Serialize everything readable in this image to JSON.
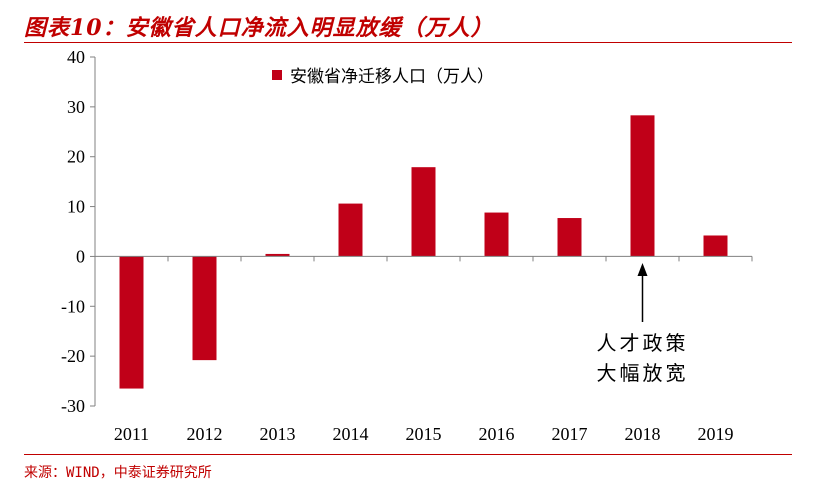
{
  "header": {
    "title": "图表10：安徽省人口净流入明显放缓（万人）"
  },
  "footer": {
    "source": "来源：WIND，中泰证券研究所"
  },
  "colors": {
    "accent": "#c00000",
    "bar": "#c00018"
  },
  "chart_data": {
    "type": "bar",
    "title": "图表10：安徽省人口净流入明显放缓（万人）",
    "xlabel": "",
    "ylabel": "",
    "categories": [
      "2011",
      "2012",
      "2013",
      "2014",
      "2015",
      "2016",
      "2017",
      "2018",
      "2019"
    ],
    "series": [
      {
        "name": "安徽省净迁移人口（万人）",
        "values": [
          -26.5,
          -20.8,
          0.5,
          10.6,
          17.9,
          8.8,
          7.7,
          28.3,
          4.2
        ]
      }
    ],
    "ylim": [
      -30,
      40
    ],
    "yticks": [
      "-30",
      "-20",
      "-10",
      "0",
      "10",
      "20",
      "30",
      "40"
    ],
    "grid": false,
    "legend": "top-left",
    "annotation": {
      "category": "2018",
      "lines": [
        "人才政策",
        "大幅放宽"
      ]
    }
  }
}
